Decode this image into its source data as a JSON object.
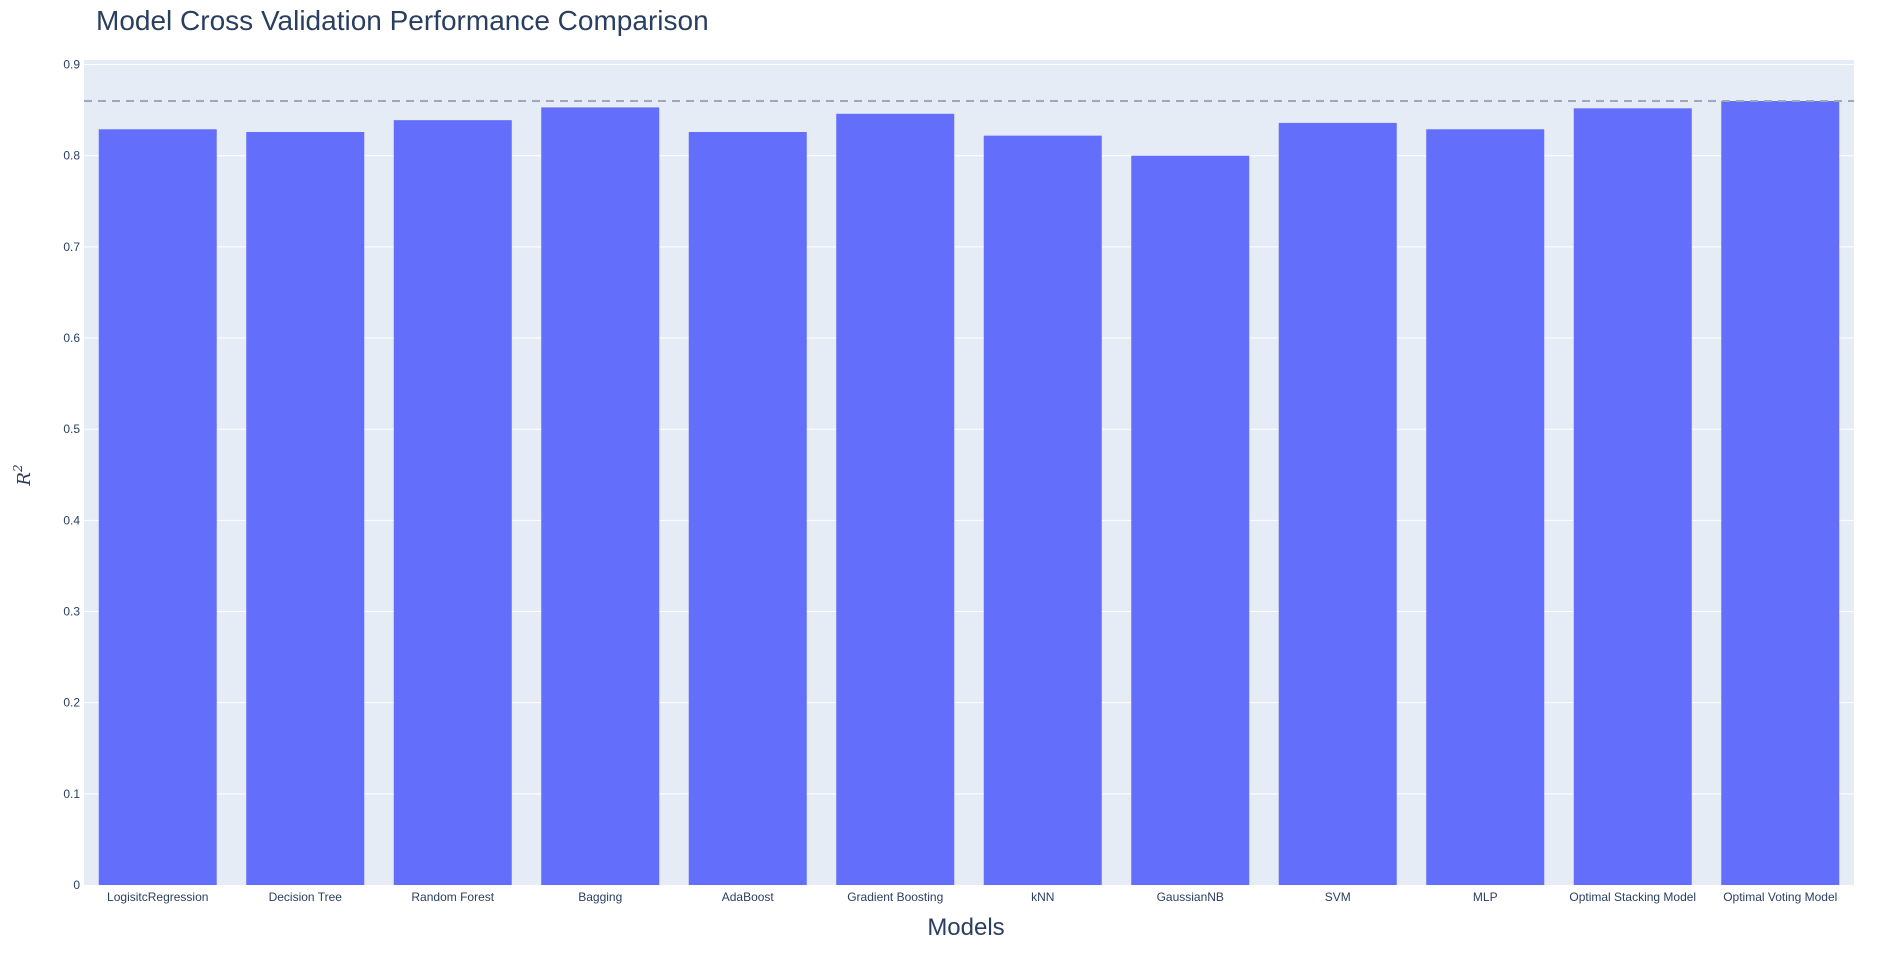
{
  "chart_data": {
    "type": "bar",
    "title": "Model Cross Validation Performance Comparison",
    "xlabel": "Models",
    "ylabel": "R",
    "ylabel_sup": "2",
    "categories": [
      "LogisitcRegression",
      "Decision Tree",
      "Random Forest",
      "Bagging",
      "AdaBoost",
      "Gradient Boosting",
      "kNN",
      "GaussianNB",
      "SVM",
      "MLP",
      "Optimal Stacking Model",
      "Optimal Voting Model"
    ],
    "values": [
      0.829,
      0.826,
      0.839,
      0.853,
      0.826,
      0.846,
      0.822,
      0.8,
      0.836,
      0.829,
      0.852,
      0.86
    ],
    "ylim": [
      0,
      0.905
    ],
    "yticks": [
      "0",
      "0.1",
      "0.2",
      "0.3",
      "0.4",
      "0.5",
      "0.6",
      "0.7",
      "0.8",
      "0.9"
    ],
    "reference_line": 0.86,
    "grid": true,
    "colors": {
      "bar": "#636efa",
      "plot_bg": "#e5ecf6",
      "grid": "#ffffff",
      "reference_line": "#a0a8b8",
      "text": "#2a3f5f"
    }
  }
}
